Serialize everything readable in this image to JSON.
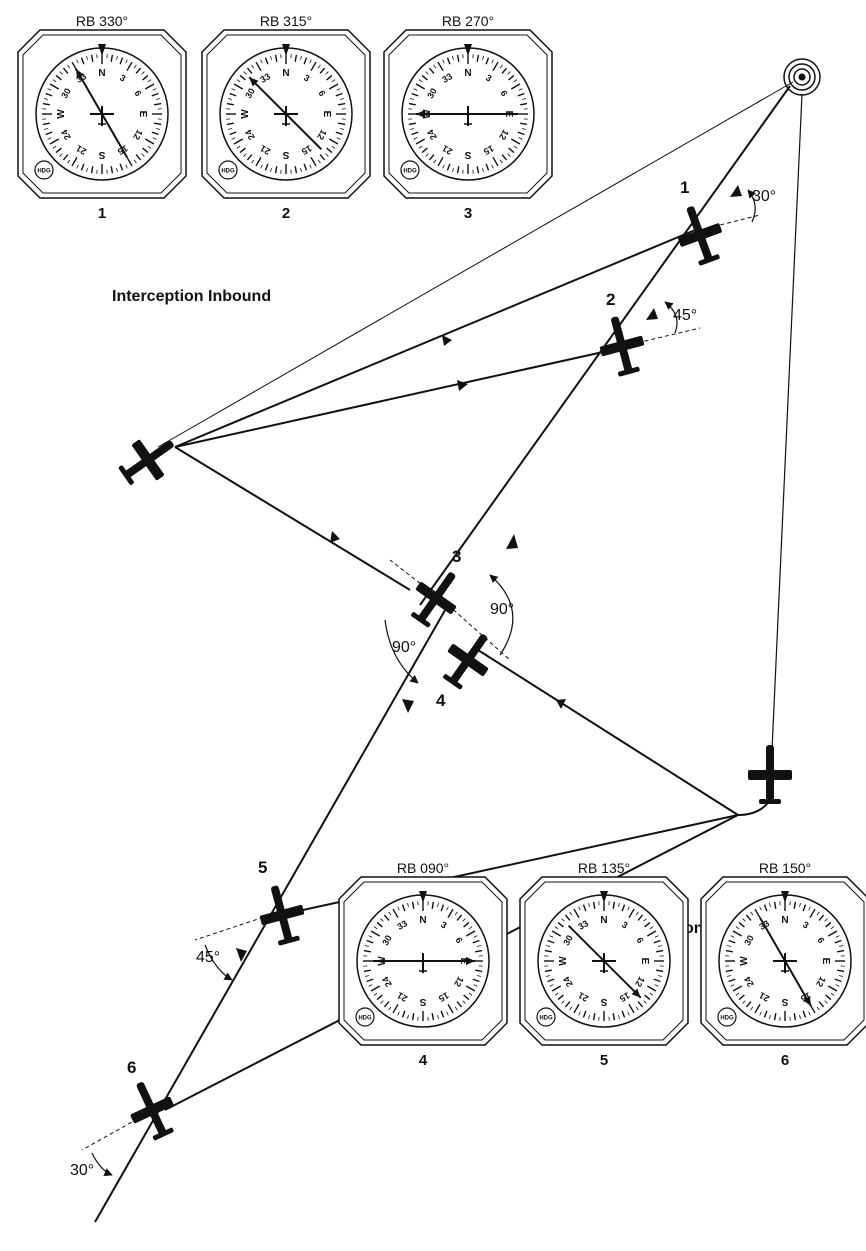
{
  "headings": {
    "inbound": "Interception Inbound",
    "outbound": "Interception Outbound"
  },
  "indicators": [
    {
      "id": "1",
      "label": "RB 330°",
      "number": "1",
      "relative_bearing_deg": 330
    },
    {
      "id": "2",
      "label": "RB 315°",
      "number": "2",
      "relative_bearing_deg": 315
    },
    {
      "id": "3",
      "label": "RB 270°",
      "number": "3",
      "relative_bearing_deg": 270
    },
    {
      "id": "4",
      "label": "RB 090°",
      "number": "4",
      "relative_bearing_deg": 90
    },
    {
      "id": "5",
      "label": "RB 135°",
      "number": "5",
      "relative_bearing_deg": 135
    },
    {
      "id": "6",
      "label": "RB 150°",
      "number": "6",
      "relative_bearing_deg": 150
    }
  ],
  "dial": {
    "north_label": "N",
    "east_label": "E",
    "south_label": "S",
    "west_label": "W",
    "numbers": [
      "3",
      "6",
      "12",
      "15",
      "21",
      "24",
      "30",
      "33"
    ],
    "hdg_label": "HDG"
  },
  "positions": {
    "p1": "1",
    "p2": "2",
    "p3": "3",
    "p4": "4",
    "p5": "5",
    "p6": "6"
  },
  "angles": {
    "a1": "30°",
    "a2": "45°",
    "a3": "90°",
    "a4": "90°",
    "a5": "45°",
    "a6": "30°"
  },
  "colors": {
    "ink": "#111111",
    "background": "#ffffff"
  }
}
